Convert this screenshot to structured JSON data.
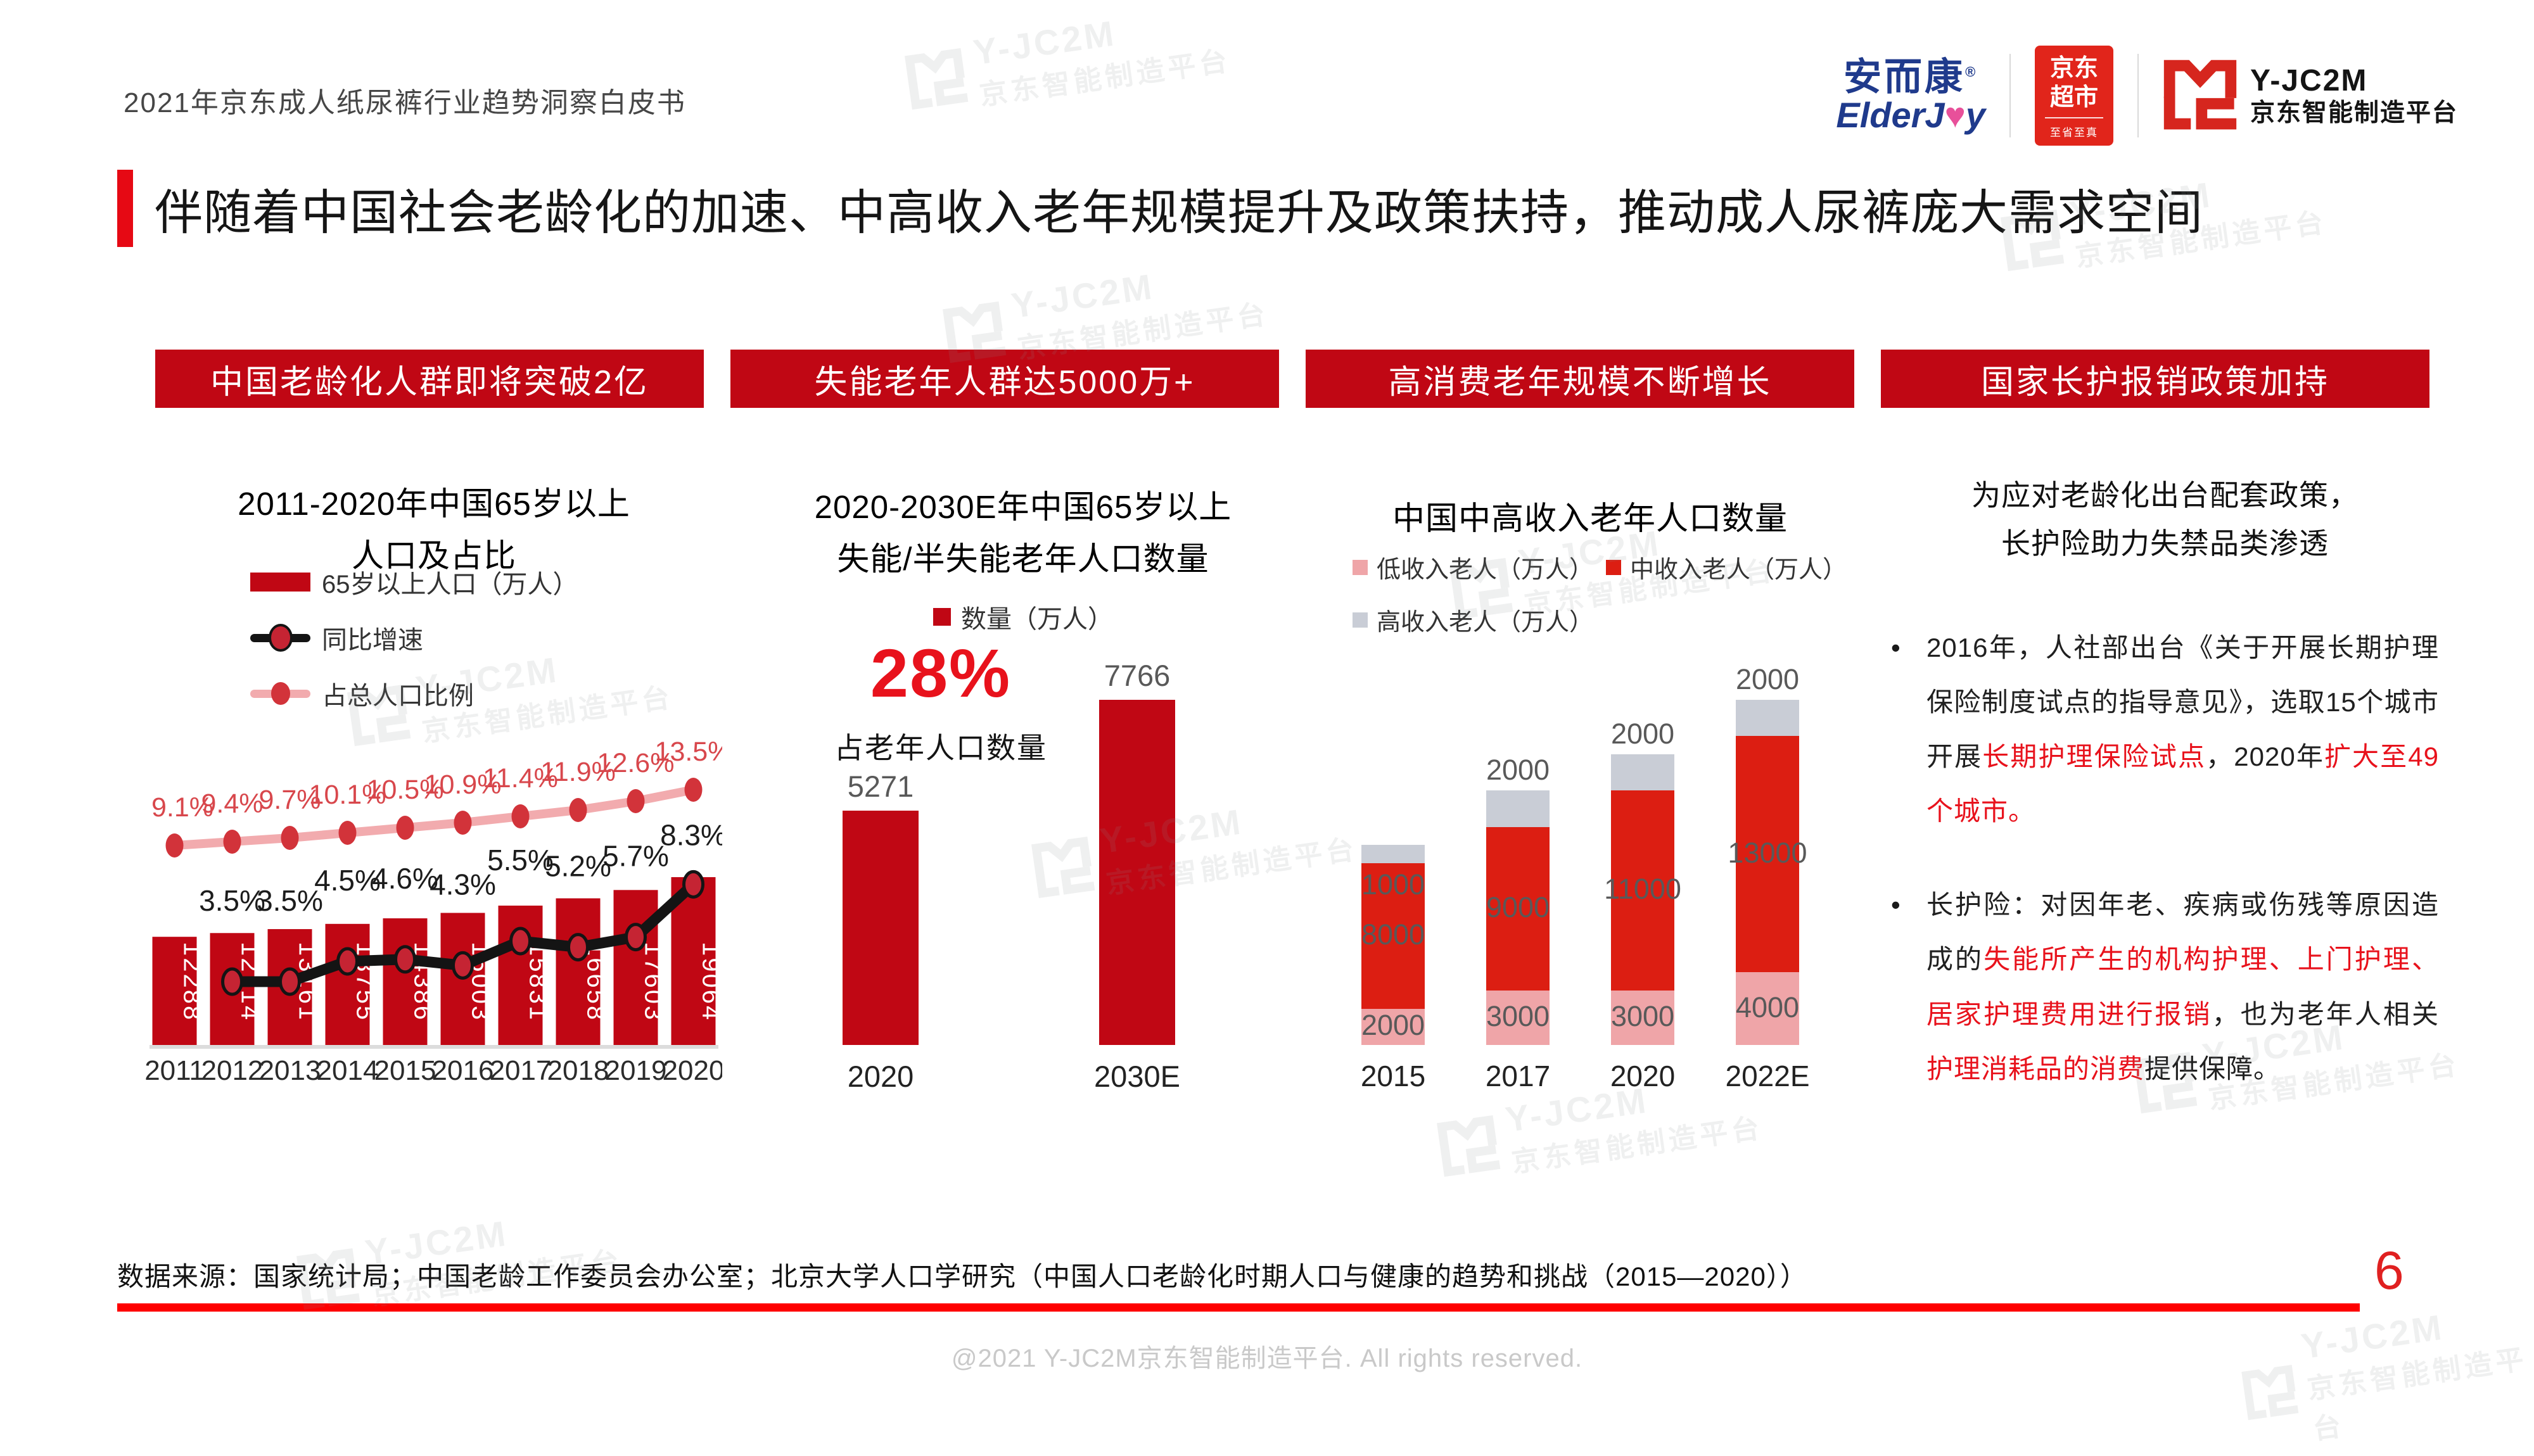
{
  "page": {
    "doc_title": "2021年京东成人纸尿裤行业趋势洞察白皮书",
    "main_title": "伴随着中国社会老龄化的加速、中高收入老年规模提升及政策扶持，推动成人尿裤庞大需求空间",
    "page_number": "6",
    "source": "数据来源：国家统计局；中国老龄工作委员会办公室；北京大学人口学研究（中国人口老龄化时期人口与健康的趋势和挑战（2015—2020））",
    "copyright": "@2021 Y-JC2M京东智能制造平台. All rights reserved."
  },
  "logos": {
    "elderjoy_cn": "安而康",
    "elderjoy_reg": "®",
    "elderjoy_en_1": "ElderJ",
    "elderjoy_heart": "♥",
    "elderjoy_en_2": "y",
    "jd_line1": "京东",
    "jd_line2": "超市",
    "jd_sub": "至省至真",
    "jc2m_name": "Y-JC2M",
    "jc2m_sub": "京东智能制造平台"
  },
  "watermark": {
    "line1": "Y-JC2M",
    "line2": "京东智能制造平台"
  },
  "banners": [
    {
      "label": "中国老龄化人群即将突破2亿"
    },
    {
      "label": "失能老年人群达5000万+"
    },
    {
      "label": "高消费老年规模不断增长"
    },
    {
      "label": "国家长护报销政策加持"
    }
  ],
  "colors": {
    "banner_red": "#C00714",
    "accent_red": "#E60914",
    "bright_red": "#DC1E12",
    "stack_pink": "#EFA5A8",
    "stack_gray": "#C9CDD6",
    "highlight_red": "#E8121C",
    "footer_line_red": "#FE0000"
  },
  "chart_data": [
    {
      "type": "bar",
      "subtype": "bar+line combo",
      "title_lines": [
        "2011-2020年中国65岁以上",
        "人口及占比"
      ],
      "categories": [
        "2011",
        "2012",
        "2013",
        "2014",
        "2015",
        "2016",
        "2017",
        "2018",
        "2019",
        "2020"
      ],
      "series": [
        {
          "name": "65岁以上人口（万人）",
          "kind": "bar",
          "color": "#C00714",
          "values": [
            12288,
            12714,
            13161,
            13755,
            14386,
            15003,
            15831,
            16658,
            17603,
            19064
          ]
        },
        {
          "name": "同比增速",
          "kind": "line",
          "color": "#141414",
          "unit": "%",
          "values": [
            null,
            3.5,
            3.5,
            4.5,
            4.6,
            4.3,
            5.5,
            5.2,
            5.7,
            8.3
          ]
        },
        {
          "name": "占总人口比例",
          "kind": "line",
          "color": "#F2ABAE",
          "unit": "%",
          "values": [
            9.1,
            9.4,
            9.7,
            10.1,
            10.5,
            10.9,
            11.4,
            11.9,
            12.6,
            13.5
          ]
        }
      ],
      "legend_position": "top",
      "grid": false
    },
    {
      "type": "bar",
      "title_lines": [
        "2020-2030E年中国65岁以上",
        "失能/半失能老年人口数量"
      ],
      "legend": "数量（万人）",
      "highlight_value": "28%",
      "highlight_caption": "占老年人口数量",
      "categories": [
        "2020",
        "2030E"
      ],
      "values": [
        5271,
        7766
      ],
      "color": "#C00714",
      "grid": false
    },
    {
      "type": "bar",
      "subtype": "stacked",
      "title": "中国中高收入老年人口数量",
      "categories": [
        "2015",
        "2017",
        "2020",
        "2022E"
      ],
      "series": [
        {
          "name": "低收入老人（万人）",
          "color": "#EFA5A8",
          "values": [
            2000,
            3000,
            3000,
            4000
          ]
        },
        {
          "name": "中收入老人（万人）",
          "color": "#DC1E12",
          "values": [
            8000,
            9000,
            11000,
            13000
          ]
        },
        {
          "name": "高收入老人（万人）",
          "color": "#C9CDD6",
          "values": [
            1000,
            2000,
            2000,
            2000
          ]
        }
      ],
      "grid": false
    }
  ],
  "policy": {
    "heading_lines": [
      "为应对老龄化出台配套政策，",
      "长护险助力失禁品类渗透"
    ],
    "bullet_glyph": "•",
    "bullets": [
      {
        "segments": [
          {
            "text": "2016年，人社部出台《关于开展长期护理保险制度试点的指导意见》，选取15个城市开展",
            "red": false
          },
          {
            "text": "长期护理保险试点",
            "red": true
          },
          {
            "text": "，2020年",
            "red": false
          },
          {
            "text": "扩大至49个城市。",
            "red": true
          }
        ]
      },
      {
        "segments": [
          {
            "text": "长护险：对因年老、疾病或伤残等原因造成的",
            "red": false
          },
          {
            "text": "失能所产生的机构护理、上门护理、居家护理费用进行报销",
            "red": true
          },
          {
            "text": "，也为老年人相关",
            "red": false
          },
          {
            "text": "护理消耗品的消费",
            "red": true
          },
          {
            "text": "提供保障。",
            "red": false
          }
        ]
      }
    ]
  }
}
